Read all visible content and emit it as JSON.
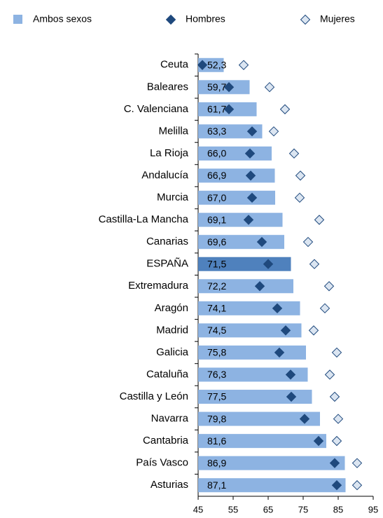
{
  "chart_data": {
    "type": "bar",
    "orientation": "horizontal",
    "categories": [
      "Ceuta",
      "Baleares",
      "C. Valenciana",
      "Melilla",
      "La Rioja",
      "Andalucía",
      "Murcia",
      "Castilla-La Mancha",
      "Canarias",
      "ESPAÑA",
      "Extremadura",
      "Aragón",
      "Madrid",
      "Galicia",
      "Cataluña",
      "Castilla y León",
      "Navarra",
      "Cantabria",
      "País Vasco",
      "Asturias"
    ],
    "series": [
      {
        "name": "Ambos sexos",
        "color": "#8db3e2",
        "marker": "bar",
        "colors": [
          "#8db3e2",
          "#8db3e2",
          "#8db3e2",
          "#8db3e2",
          "#8db3e2",
          "#8db3e2",
          "#8db3e2",
          "#8db3e2",
          "#8db3e2",
          "#4f81bd",
          "#8db3e2",
          "#8db3e2",
          "#8db3e2",
          "#8db3e2",
          "#8db3e2",
          "#8db3e2",
          "#8db3e2",
          "#8db3e2",
          "#8db3e2",
          "#8db3e2"
        ],
        "values": [
          52.3,
          59.7,
          61.7,
          63.3,
          66.0,
          66.9,
          67.0,
          69.1,
          69.6,
          71.5,
          72.2,
          74.1,
          74.5,
          75.8,
          76.3,
          77.5,
          79.8,
          81.6,
          86.9,
          87.1
        ],
        "value_labels": [
          "52,3",
          "59,7",
          "61,7",
          "63,3",
          "66,0",
          "66,9",
          "67,0",
          "69,1",
          "69,6",
          "71,5",
          "72,2",
          "74,1",
          "74,5",
          "75,8",
          "76,3",
          "77,5",
          "79,8",
          "81,6",
          "86,9",
          "87,1"
        ]
      },
      {
        "name": "Hombres",
        "color": "#1f497d",
        "marker": "diamond-filled",
        "values": [
          46.2,
          53.8,
          53.8,
          60.4,
          59.8,
          60.0,
          60.4,
          59.4,
          63.2,
          65.0,
          62.6,
          67.6,
          70.0,
          68.2,
          71.4,
          71.6,
          75.4,
          79.4,
          84.0,
          84.6
        ]
      },
      {
        "name": "Mujeres",
        "color": "#1f497d",
        "marker": "diamond-hollow",
        "values": [
          58.0,
          65.4,
          69.8,
          66.6,
          72.4,
          74.2,
          74.0,
          79.6,
          76.4,
          78.2,
          82.4,
          81.2,
          78.0,
          84.6,
          82.6,
          84.0,
          85.0,
          84.6,
          90.4,
          90.4
        ]
      }
    ],
    "xlim": [
      45,
      95
    ],
    "xticks": [
      45,
      55,
      65,
      75,
      85,
      95
    ]
  }
}
